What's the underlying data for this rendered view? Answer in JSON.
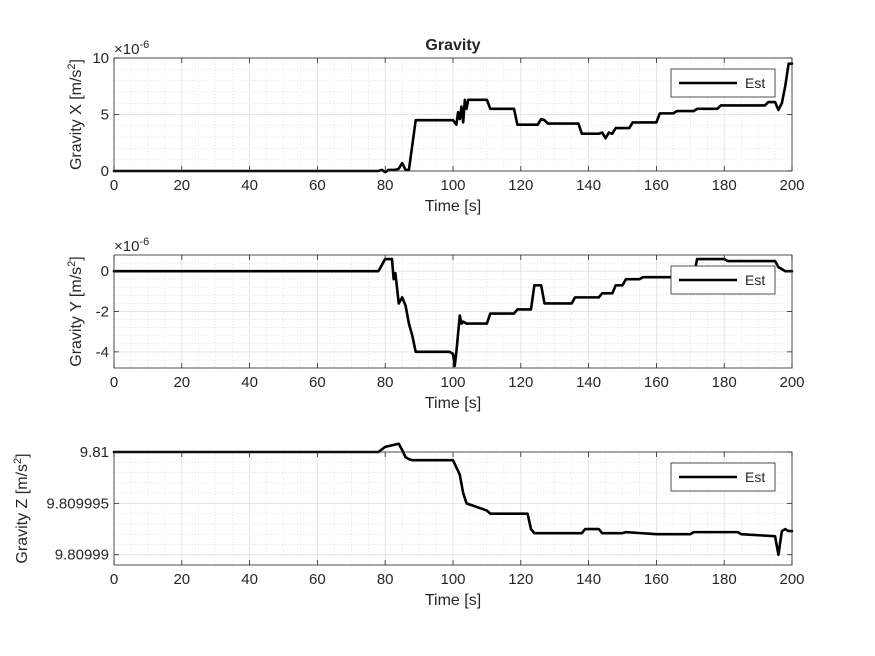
{
  "chart_data": [
    {
      "type": "line",
      "title": "Gravity",
      "xlabel": "Time [s]",
      "ylabel": "Gravity X [m/s",
      "ylabel_sup": "2",
      "ylabel_end": "]",
      "y_exponent_label": "×10",
      "y_exponent_power": "-6",
      "xlim": [
        0,
        200
      ],
      "ylim": [
        0,
        10
      ],
      "xticks": [
        0,
        20,
        40,
        60,
        80,
        100,
        120,
        140,
        160,
        180,
        200
      ],
      "yticks": [
        0,
        5,
        10
      ],
      "ytick_labels": [
        "0",
        "5",
        "10"
      ],
      "grid": true,
      "minor_grid": true,
      "legend_position": "top-right",
      "series": [
        {
          "name": "Est",
          "color": "#000000",
          "x": [
            0,
            78,
            79,
            80,
            81,
            82,
            83,
            84,
            85,
            86,
            87,
            88,
            89,
            100,
            101,
            101.5,
            102,
            102.5,
            103,
            103.5,
            104,
            104.5,
            105,
            110,
            111,
            118,
            119,
            125,
            126,
            127,
            128,
            137,
            138,
            143,
            144,
            145,
            146,
            147,
            148,
            152,
            153,
            160,
            161,
            165,
            166,
            171,
            172,
            178,
            179,
            192,
            193,
            195,
            196,
            197,
            198,
            199,
            200
          ],
          "y": [
            0,
            0,
            0.1,
            -0.1,
            0.1,
            0.1,
            0.1,
            0.2,
            0.7,
            0.1,
            0.1,
            2.3,
            4.5,
            4.5,
            4.1,
            5.2,
            4.6,
            5.7,
            4.3,
            6.3,
            5.5,
            6.3,
            6.3,
            6.3,
            5.5,
            5.5,
            4.1,
            4.1,
            4.6,
            4.5,
            4.2,
            4.2,
            3.3,
            3.3,
            3.4,
            2.9,
            3.4,
            3.3,
            3.8,
            3.8,
            4.3,
            4.3,
            5.1,
            5.1,
            5.3,
            5.3,
            5.5,
            5.5,
            5.8,
            5.8,
            6.1,
            6.1,
            5.4,
            6.0,
            7.5,
            9.5,
            9.5
          ]
        }
      ]
    },
    {
      "type": "line",
      "title": "",
      "xlabel": "Time [s]",
      "ylabel": "Gravity Y [m/s",
      "ylabel_sup": "2",
      "ylabel_end": "]",
      "y_exponent_label": "×10",
      "y_exponent_power": "-6",
      "xlim": [
        0,
        200
      ],
      "ylim": [
        -4.8,
        0.8
      ],
      "xticks": [
        0,
        20,
        40,
        60,
        80,
        100,
        120,
        140,
        160,
        180,
        200
      ],
      "yticks": [
        -4,
        -2,
        0
      ],
      "ytick_labels": [
        "-4",
        "-2",
        "0"
      ],
      "grid": true,
      "minor_grid": true,
      "legend_position": "right",
      "series": [
        {
          "name": "Est",
          "color": "#000000",
          "x": [
            0,
            78,
            79,
            80,
            81,
            82,
            82.5,
            83,
            84,
            85,
            86,
            87,
            88,
            89,
            99,
            100,
            100.5,
            101,
            102,
            102.5,
            103,
            104,
            105,
            110,
            111,
            118,
            119,
            123,
            124,
            126,
            127,
            135,
            136,
            143,
            144,
            147,
            148,
            150,
            151,
            155,
            156,
            171,
            172,
            180,
            181,
            195,
            196,
            198,
            200
          ],
          "y": [
            0,
            0,
            0.3,
            0.6,
            0.6,
            0.6,
            -0.4,
            -0.1,
            -1.6,
            -1.3,
            -1.7,
            -2.6,
            -3.2,
            -4.0,
            -4.0,
            -4.1,
            -4.7,
            -4.0,
            -2.2,
            -2.6,
            -2.5,
            -2.6,
            -2.6,
            -2.6,
            -2.1,
            -2.1,
            -1.9,
            -1.9,
            -0.7,
            -0.7,
            -1.6,
            -1.6,
            -1.3,
            -1.3,
            -1.1,
            -1.1,
            -0.7,
            -0.7,
            -0.4,
            -0.4,
            -0.3,
            -0.3,
            0.6,
            0.6,
            0.5,
            0.5,
            0.2,
            0.0,
            0.0
          ]
        }
      ]
    },
    {
      "type": "line",
      "title": "",
      "xlabel": "Time [s]",
      "ylabel": "Gravity Z [m/s",
      "ylabel_sup": "2",
      "ylabel_end": "]",
      "xlim": [
        0,
        200
      ],
      "ylim": [
        9.809989,
        9.81
      ],
      "xticks": [
        0,
        20,
        40,
        60,
        80,
        100,
        120,
        140,
        160,
        180,
        200
      ],
      "yticks": [
        9.80999,
        9.809995,
        9.81
      ],
      "ytick_labels": [
        "9.80999",
        "9.809995",
        "9.81"
      ],
      "grid": true,
      "minor_grid": true,
      "legend_position": "top-right",
      "series": [
        {
          "name": "Est",
          "color": "#000000",
          "x": [
            0,
            78,
            80,
            84,
            85,
            86,
            87,
            88,
            100,
            101,
            102,
            103,
            104,
            110,
            111,
            122,
            123,
            124,
            138,
            139,
            143,
            144,
            150,
            151,
            160,
            161,
            170,
            171,
            184,
            185,
            195,
            196,
            197,
            198,
            199,
            200
          ],
          "y": [
            9.81,
            9.81,
            9.8100005,
            9.8100008,
            9.8100002,
            9.8099995,
            9.8099993,
            9.8099992,
            9.8099992,
            9.8099985,
            9.8099978,
            9.809996,
            9.809995,
            9.8099943,
            9.809994,
            9.809994,
            9.8099925,
            9.8099921,
            9.8099921,
            9.8099925,
            9.8099925,
            9.8099921,
            9.8099921,
            9.8099922,
            9.809992,
            9.809992,
            9.809992,
            9.8099922,
            9.8099922,
            9.809992,
            9.8099918,
            9.80999,
            9.8099923,
            9.8099925,
            9.8099923,
            9.8099923
          ]
        }
      ]
    }
  ]
}
